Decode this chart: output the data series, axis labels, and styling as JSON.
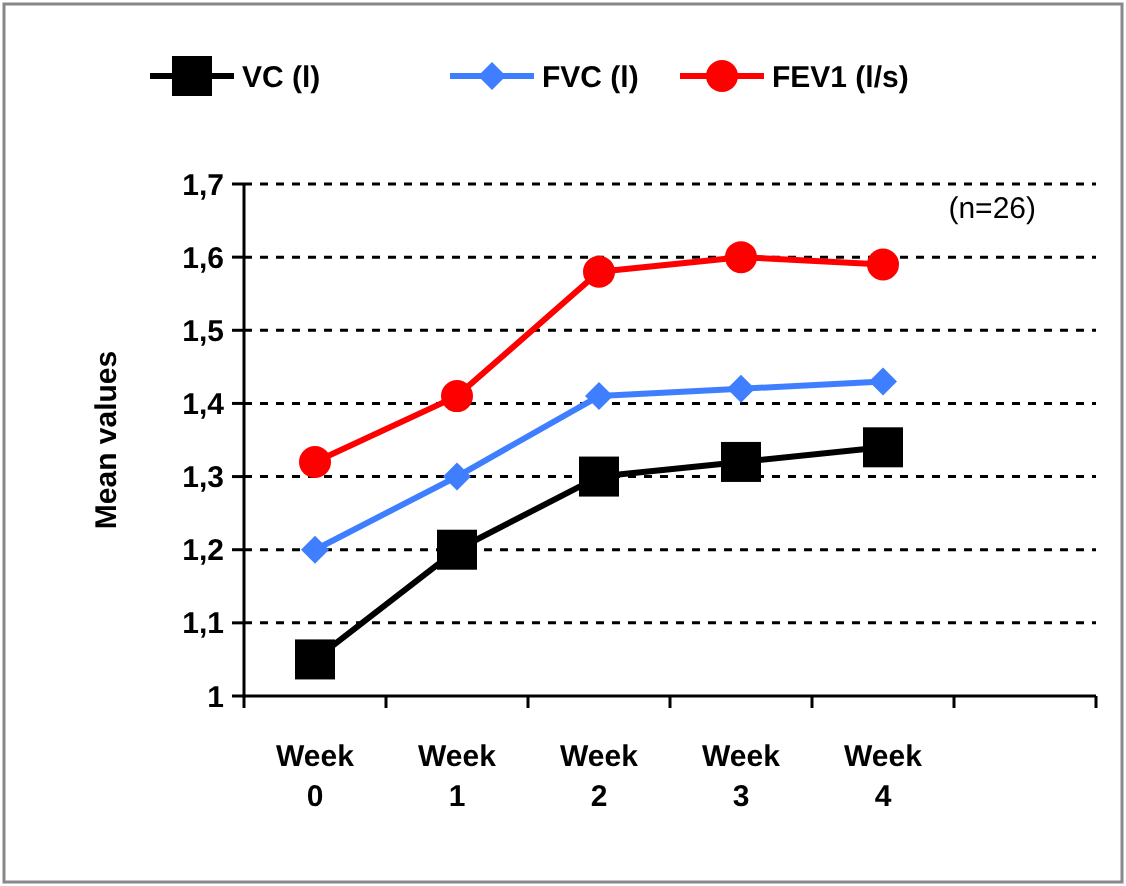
{
  "chart_data": {
    "type": "line",
    "ylabel": "Mean values",
    "categories": [
      "Week 0",
      "Week 1",
      "Week 2",
      "Week 3",
      "Week 4",
      null
    ],
    "series": [
      {
        "name": "VC (l)",
        "color": "#000000",
        "marker": "square",
        "values": [
          1.05,
          1.2,
          1.3,
          1.32,
          1.34,
          null
        ]
      },
      {
        "name": "FVC (l)",
        "color": "#3f7fff",
        "marker": "diamond",
        "values": [
          1.2,
          1.3,
          1.41,
          1.42,
          1.43,
          null
        ]
      },
      {
        "name": "FEV1 (l/s)",
        "color": "#ff0000",
        "marker": "circle",
        "values": [
          1.32,
          1.41,
          1.58,
          1.6,
          1.59,
          null
        ]
      }
    ],
    "ylim": [
      1,
      1.7
    ],
    "yticks": [
      1,
      {
        "value": 1.1,
        "label": "1,1"
      },
      {
        "value": 1.2,
        "label": "1,2"
      },
      {
        "value": 1.3,
        "label": "1,3"
      },
      {
        "value": 1.4,
        "label": "1,4"
      },
      {
        "value": 1.5,
        "label": "1,5"
      },
      {
        "value": 1.6,
        "label": "1,6"
      },
      {
        "value": 1.7,
        "label": "1,7"
      }
    ],
    "grid": "y",
    "legend": "top",
    "annotations": [
      "(n=26)"
    ]
  }
}
